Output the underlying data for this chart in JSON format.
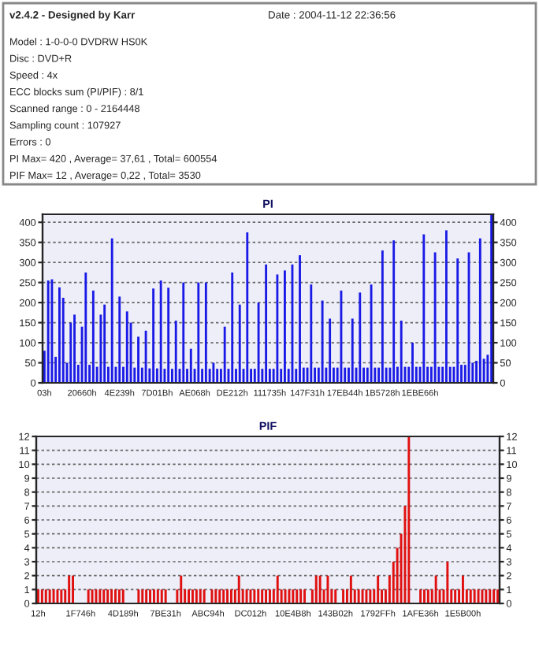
{
  "chart_data": [
    {
      "type": "other",
      "title": "v2.4.2 - Designed by Karr",
      "annotations": [
        "Date : 2004-11-12 22:36:56",
        "Model : 1-0-0-0 DVDRW HS0K",
        "Disc : DVD+R",
        "Speed : 4x",
        "ECC blocks sum (PI/PIF) : 8/1",
        "Scanned range : 0 - 2164448",
        "Sampling count : 107927",
        "Errors : 0",
        "PI Max= 420 , Average= 37,61 , Total= 600554",
        "PIF Max= 12 , Average= 0,22 , Total= 3530"
      ]
    },
    {
      "type": "bar",
      "title": "PI",
      "color": "#1a1ae6",
      "grid": "y",
      "legend": false,
      "categories": [
        "03h",
        null,
        null,
        null,
        null,
        null,
        null,
        null,
        null,
        null,
        "20660h",
        null,
        null,
        null,
        null,
        null,
        null,
        null,
        null,
        null,
        "4E239h",
        null,
        null,
        null,
        null,
        null,
        null,
        null,
        null,
        null,
        "7D01Bh",
        null,
        null,
        null,
        null,
        null,
        null,
        null,
        null,
        null,
        "AE068h",
        null,
        null,
        null,
        null,
        null,
        null,
        null,
        null,
        null,
        "DE212h",
        null,
        null,
        null,
        null,
        null,
        null,
        null,
        null,
        null,
        "111735h",
        null,
        null,
        null,
        null,
        null,
        null,
        null,
        null,
        null,
        "147F31h",
        null,
        null,
        null,
        null,
        null,
        null,
        null,
        null,
        null,
        "17EB44h",
        null,
        null,
        null,
        null,
        null,
        null,
        null,
        null,
        null,
        "1B5728h",
        null,
        null,
        null,
        null,
        null,
        null,
        null,
        null,
        null,
        "1EBE66h",
        null,
        null,
        null,
        null,
        null,
        null,
        null,
        null,
        null,
        null,
        null,
        null,
        null,
        null,
        null,
        null,
        null,
        null,
        null
      ],
      "values": [
        80,
        255,
        258,
        65,
        238,
        212,
        50,
        150,
        170,
        45,
        140,
        275,
        45,
        230,
        40,
        170,
        195,
        40,
        360,
        40,
        215,
        40,
        178,
        150,
        38,
        115,
        38,
        130,
        36,
        235,
        36,
        255,
        35,
        237,
        35,
        155,
        35,
        250,
        35,
        85,
        35,
        250,
        35,
        250,
        35,
        50,
        35,
        35,
        140,
        35,
        275,
        35,
        195,
        35,
        375,
        35,
        35,
        200,
        35,
        295,
        35,
        35,
        270,
        35,
        280,
        35,
        295,
        35,
        318,
        38,
        38,
        245,
        38,
        38,
        205,
        38,
        160,
        38,
        38,
        230,
        38,
        38,
        160,
        38,
        225,
        38,
        38,
        245,
        38,
        38,
        330,
        38,
        38,
        355,
        40,
        155,
        40,
        40,
        100,
        40,
        40,
        370,
        40,
        40,
        325,
        40,
        40,
        380,
        40,
        40,
        310,
        45,
        45,
        325,
        50,
        55,
        360,
        60,
        70,
        420
      ],
      "ylim": [
        0,
        420
      ],
      "yticks": [
        0,
        50,
        100,
        150,
        200,
        250,
        300,
        350,
        400
      ],
      "y2lim": [
        0,
        420
      ],
      "y2ticks": [
        0,
        50,
        100,
        150,
        200,
        250,
        300,
        350,
        400
      ]
    },
    {
      "type": "bar",
      "title": "PIF",
      "color": "#e01010",
      "grid": "y",
      "legend": false,
      "categories": [
        "12h",
        null,
        null,
        null,
        null,
        null,
        null,
        null,
        null,
        null,
        null,
        "1F746h",
        null,
        null,
        null,
        null,
        null,
        null,
        null,
        null,
        null,
        null,
        "4D189h",
        null,
        null,
        null,
        null,
        null,
        null,
        null,
        null,
        null,
        null,
        "7BE31h",
        null,
        null,
        null,
        null,
        null,
        null,
        null,
        null,
        null,
        null,
        "ABC94h",
        null,
        null,
        null,
        null,
        null,
        null,
        null,
        null,
        null,
        null,
        "DC012h",
        null,
        null,
        null,
        null,
        null,
        null,
        null,
        null,
        null,
        null,
        "10E4B8h",
        null,
        null,
        null,
        null,
        null,
        null,
        null,
        null,
        null,
        null,
        "143B02h",
        null,
        null,
        null,
        null,
        null,
        null,
        null,
        null,
        null,
        null,
        "1792FFh",
        null,
        null,
        null,
        null,
        null,
        null,
        null,
        null,
        null,
        null,
        "1AFE36h",
        null,
        null,
        null,
        null,
        null,
        null,
        null,
        null,
        null,
        null,
        "1E5B00h",
        null,
        null,
        null,
        null,
        null,
        null,
        null,
        null,
        null
      ],
      "values": [
        1,
        1,
        1,
        1,
        1,
        1,
        1,
        1,
        2,
        2,
        0,
        0,
        0,
        1,
        1,
        1,
        1,
        1,
        1,
        1,
        1,
        1,
        1,
        0,
        0,
        0,
        1,
        1,
        1,
        1,
        1,
        1,
        1,
        1,
        0,
        0,
        1,
        2,
        1,
        1,
        1,
        1,
        1,
        1,
        0,
        1,
        1,
        1,
        1,
        1,
        1,
        1,
        2,
        1,
        1,
        1,
        1,
        1,
        1,
        1,
        1,
        1,
        2,
        1,
        1,
        1,
        1,
        1,
        1,
        1,
        0,
        1,
        2,
        2,
        1,
        2,
        1,
        1,
        0,
        1,
        1,
        2,
        1,
        1,
        1,
        1,
        1,
        1,
        2,
        1,
        1,
        2,
        3,
        4,
        5,
        7,
        12,
        0,
        0,
        1,
        1,
        1,
        1,
        2,
        1,
        1,
        3,
        1,
        1,
        1,
        2,
        1,
        1,
        1,
        1,
        1,
        1,
        1,
        1,
        1
      ],
      "ylim": [
        0,
        12
      ],
      "yticks": [
        0,
        1,
        2,
        3,
        4,
        5,
        6,
        7,
        8,
        9,
        10,
        11,
        12
      ],
      "y2lim": [
        0,
        12
      ],
      "y2ticks": [
        0,
        1,
        2,
        3,
        4,
        5,
        6,
        7,
        8,
        9,
        10,
        11,
        12
      ]
    }
  ]
}
